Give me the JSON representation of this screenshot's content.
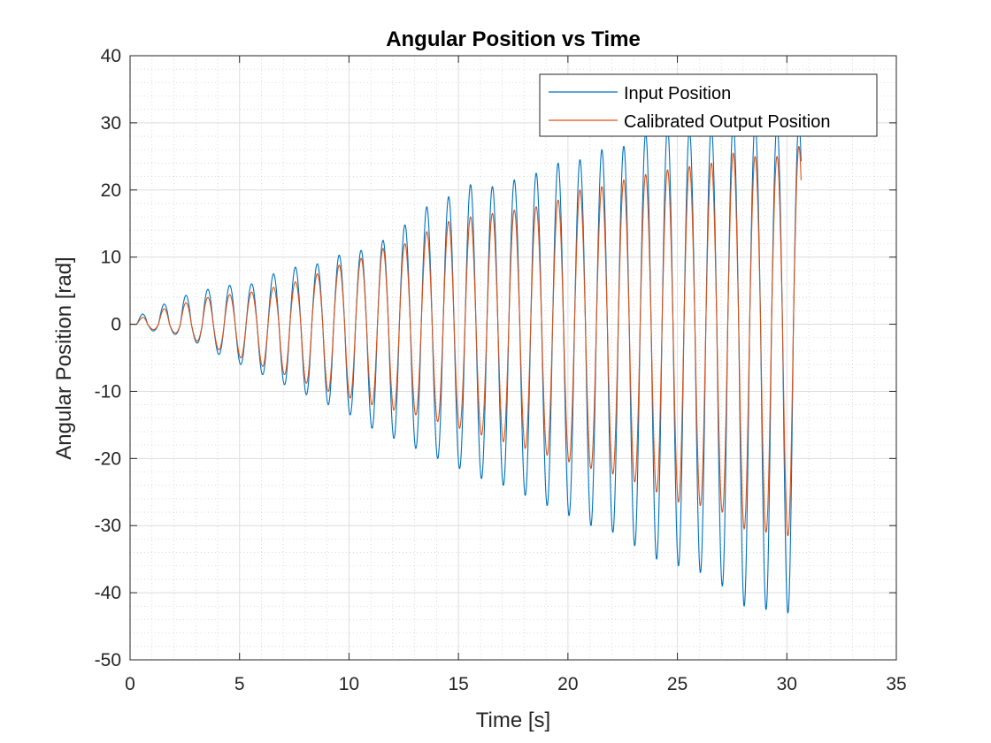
{
  "chart_data": {
    "type": "line",
    "title": "Angular Position vs Time",
    "xlabel": "Time [s]",
    "ylabel": "Angular Position [rad]",
    "xlim": [
      0,
      35
    ],
    "ylim": [
      -50,
      40
    ],
    "xticks": [
      0,
      5,
      10,
      15,
      20,
      25,
      30,
      35
    ],
    "yticks": [
      40,
      30,
      20,
      10,
      0,
      -10,
      -20,
      -30,
      -40,
      -50
    ],
    "grid": "major and minor",
    "legend_position": "top-right",
    "frequency_hz": 1.0,
    "series": [
      {
        "name": "Input Position",
        "color": "#0072BD",
        "x": [
          0,
          0.55,
          1.55,
          2.55,
          3.55,
          4.55,
          5.55,
          6.55,
          7.55,
          8.55,
          9.55,
          10.55,
          11.55,
          12.55,
          13.55,
          14.55,
          15.55,
          16.55,
          17.55,
          18.55,
          19.55,
          20.55,
          21.55,
          22.55,
          23.55,
          24.55,
          25.55,
          26.55,
          27.55,
          28.55,
          29.55,
          30.55
        ],
        "peaks": [
          0,
          1.5,
          3.0,
          4.3,
          5.2,
          5.8,
          6.0,
          7.5,
          8.5,
          9.0,
          10.3,
          11.0,
          12.5,
          14.8,
          17.5,
          19.0,
          20.8,
          20.5,
          21.5,
          22.5,
          24.0,
          24.5,
          26.0,
          26.5,
          28.5,
          29.5,
          29.0,
          29.5,
          30.0,
          30.0,
          30.0,
          30.0
        ],
        "x_troughs": [
          0,
          1.05,
          2.05,
          3.05,
          4.05,
          5.05,
          6.05,
          7.05,
          8.05,
          9.05,
          10.05,
          11.05,
          12.05,
          13.05,
          14.05,
          15.05,
          16.05,
          17.05,
          18.05,
          19.05,
          20.05,
          21.05,
          22.05,
          23.05,
          24.05,
          25.05,
          26.05,
          27.05,
          28.05,
          29.05,
          30.05
        ],
        "troughs": [
          0,
          -1.0,
          -1.5,
          -2.8,
          -4.5,
          -6.0,
          -7.5,
          -9.0,
          -10.5,
          -12.0,
          -13.5,
          -15.5,
          -17.0,
          -18.5,
          -20.0,
          -21.5,
          -23.0,
          -24.0,
          -25.5,
          -27.0,
          -28.5,
          -30.0,
          -31.0,
          -33.0,
          -35.0,
          -36.0,
          -37.0,
          -39.0,
          -42.0,
          -42.5,
          -43.0
        ]
      },
      {
        "name": "Calibrated Output Position",
        "color": "#D95319",
        "x": [
          0,
          0.55,
          1.55,
          2.55,
          3.55,
          4.55,
          5.55,
          6.55,
          7.55,
          8.55,
          9.55,
          10.55,
          11.55,
          12.55,
          13.55,
          14.55,
          15.55,
          16.55,
          17.55,
          18.55,
          19.55,
          20.55,
          21.55,
          22.55,
          23.55,
          24.55,
          25.55,
          26.55,
          27.55,
          28.55,
          29.55,
          30.55
        ],
        "peaks": [
          0,
          1.0,
          2.3,
          3.2,
          4.0,
          4.4,
          4.8,
          5.5,
          6.3,
          7.5,
          8.8,
          9.8,
          11.3,
          12.0,
          13.8,
          15.3,
          16.0,
          16.5,
          17.0,
          17.5,
          18.5,
          20.0,
          20.5,
          21.5,
          22.3,
          23.0,
          23.5,
          24.0,
          25.5,
          25.0,
          25.0,
          26.5
        ],
        "x_troughs": [
          0,
          1.05,
          2.05,
          3.05,
          4.05,
          5.05,
          6.05,
          7.05,
          8.05,
          9.05,
          10.05,
          11.05,
          12.05,
          13.05,
          14.05,
          15.05,
          16.05,
          17.05,
          18.05,
          19.05,
          20.05,
          21.05,
          22.05,
          23.05,
          24.05,
          25.05,
          26.05,
          27.05,
          28.05,
          29.05,
          30.05
        ],
        "troughs": [
          0,
          -0.8,
          -1.3,
          -2.5,
          -3.8,
          -5.0,
          -6.3,
          -7.5,
          -8.8,
          -10.0,
          -11.0,
          -12.0,
          -12.8,
          -13.5,
          -14.5,
          -15.5,
          -16.5,
          -17.5,
          -18.5,
          -19.5,
          -20.5,
          -21.5,
          -22.3,
          -23.5,
          -25.0,
          -26.5,
          -27.0,
          -28.0,
          -30.5,
          -31.0,
          -31.5
        ]
      }
    ]
  }
}
